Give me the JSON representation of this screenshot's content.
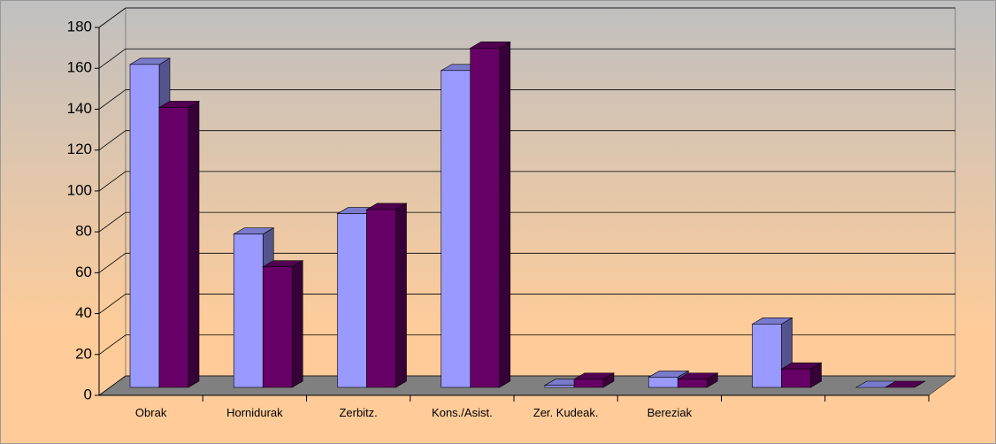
{
  "chart_data": {
    "type": "bar3d",
    "categories": [
      "Obrak",
      "Hornidurak",
      "Zerbitz.",
      "Kons./Asist.",
      "Zer. Kudeak.",
      "Bereziak",
      null,
      null
    ],
    "series": [
      {
        "color": "#9999ff",
        "values": [
          158,
          75,
          85,
          155,
          1,
          5,
          31,
          0
        ]
      },
      {
        "color": "#660066",
        "values": [
          137,
          59,
          87,
          166,
          4,
          4,
          9,
          0
        ]
      }
    ],
    "ylim": [
      0,
      180
    ],
    "yticks": [
      0,
      20,
      40,
      60,
      80,
      100,
      120,
      140,
      160,
      180
    ],
    "grid": true
  }
}
